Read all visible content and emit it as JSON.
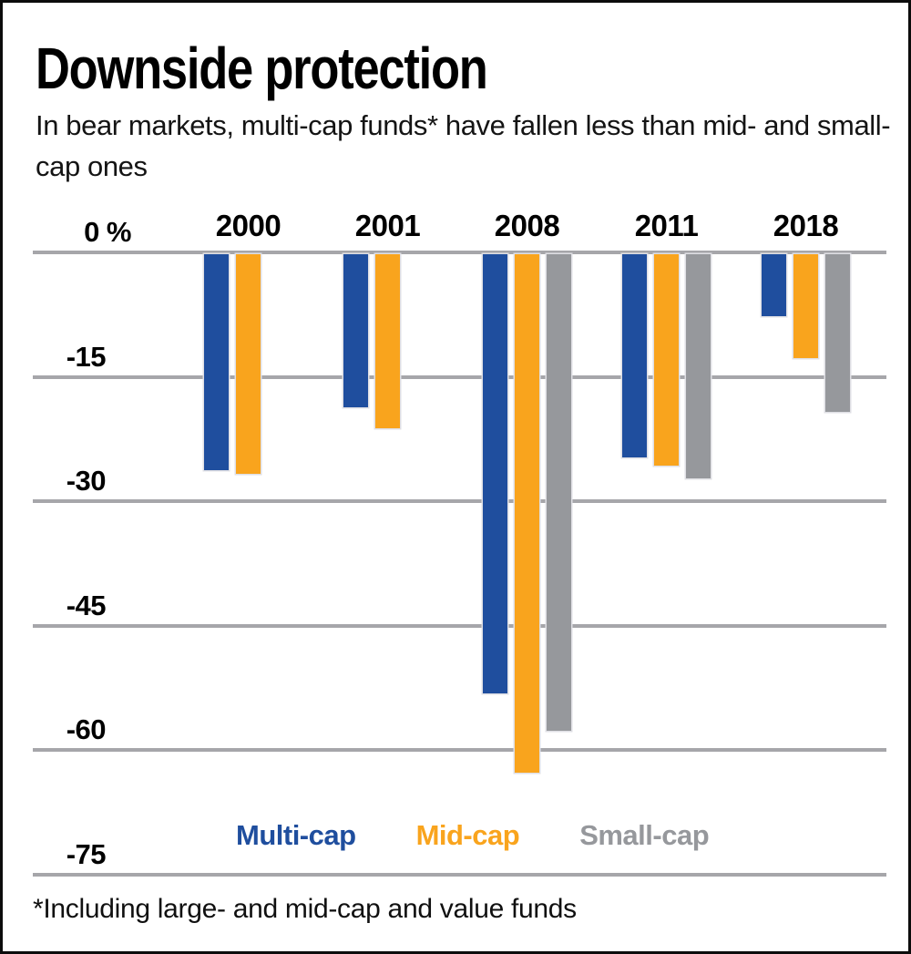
{
  "page": {
    "title": "Downside protection",
    "subtitle": "In bear markets, multi-cap funds* have fallen less than mid- and small-cap ones",
    "footnote": "*Including large- and mid-cap and value funds"
  },
  "chart_data": {
    "type": "bar",
    "title": "Downside protection",
    "subtitle": "In bear markets, multi-cap funds* have fallen less than mid- and small-cap ones",
    "categories": [
      "2000",
      "2001",
      "2008",
      "2011",
      "2018"
    ],
    "series": [
      {
        "name": "Multi-cap",
        "color": "#1F4E9E",
        "values": [
          -26,
          -18.5,
          -53,
          -24.5,
          -7.5
        ]
      },
      {
        "name": "Mid-cap",
        "color": "#F9A41D",
        "values": [
          -26.5,
          -21,
          -62.5,
          -25.5,
          -12.5
        ]
      },
      {
        "name": "Small-cap",
        "color": "#96989C",
        "values": [
          null,
          null,
          -57.5,
          -27,
          -19
        ]
      }
    ],
    "y_axis": {
      "unit": "%",
      "ticks": [
        0,
        -15,
        -30,
        -45,
        -60,
        -75
      ],
      "tick_labels": [
        "0 %",
        "-15",
        "-30",
        "-45",
        "-60",
        "-75"
      ],
      "ylim": [
        -75,
        0
      ]
    },
    "grid": true,
    "legend_position": "bottom",
    "footnote": "*Including large- and mid-cap and value funds",
    "colors": {
      "gridline": "#A6A6AA",
      "text": "#000000",
      "background": "#FFFFFF"
    }
  }
}
